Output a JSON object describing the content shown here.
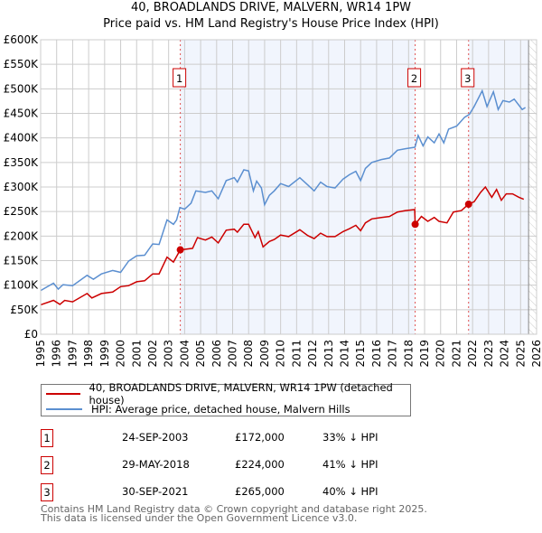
{
  "title": "40, BROADLANDS DRIVE, MALVERN, WR14 1PW",
  "subtitle": "Price paid vs. HM Land Registry's House Price Index (HPI)",
  "chart_data": {
    "type": "line",
    "title": "40, BROADLANDS DRIVE, MALVERN, WR14 1PW — Price paid vs. HM Land Registry's House Price Index (HPI)",
    "xlim": [
      1995,
      2026
    ],
    "ylim": [
      0,
      600000
    ],
    "x_ticks": [
      "1995",
      "1996",
      "1997",
      "1998",
      "1999",
      "2000",
      "2001",
      "2002",
      "2003",
      "2004",
      "2005",
      "2006",
      "2007",
      "2008",
      "2009",
      "2010",
      "2011",
      "2012",
      "2013",
      "2014",
      "2015",
      "2016",
      "2017",
      "2018",
      "2019",
      "2020",
      "2021",
      "2022",
      "2023",
      "2024",
      "2025",
      "2026"
    ],
    "y_ticks": [
      {
        "v": 0,
        "l": "£0"
      },
      {
        "v": 50000,
        "l": "£50K"
      },
      {
        "v": 100000,
        "l": "£100K"
      },
      {
        "v": 150000,
        "l": "£150K"
      },
      {
        "v": 200000,
        "l": "£200K"
      },
      {
        "v": 250000,
        "l": "£250K"
      },
      {
        "v": 300000,
        "l": "£300K"
      },
      {
        "v": 350000,
        "l": "£350K"
      },
      {
        "v": 400000,
        "l": "£400K"
      },
      {
        "v": 450000,
        "l": "£450K"
      },
      {
        "v": 500000,
        "l": "£500K"
      },
      {
        "v": 550000,
        "l": "£550K"
      },
      {
        "v": 600000,
        "l": "£600K"
      }
    ],
    "grid": true,
    "series": [
      {
        "name": "40, BROADLANDS DRIVE, MALVERN, WR14 1PW (detached house)",
        "color": "#cc0000",
        "x": [
          1995,
          1995.8,
          1996.2,
          1996.5,
          1997,
          1997.9,
          1998.2,
          1998.8,
          1999.5,
          2000,
          2000.5,
          2001,
          2001.5,
          2002,
          2002.4,
          2002.9,
          2003.3,
          2003.73,
          2004,
          2004.5,
          2004.8,
          2005.3,
          2005.7,
          2006.1,
          2006.6,
          2007.1,
          2007.3,
          2007.7,
          2008,
          2008.4,
          2008.6,
          2008.9,
          2009.3,
          2009.6,
          2010,
          2010.5,
          2011.2,
          2011.7,
          2012.1,
          2012.5,
          2012.9,
          2013.4,
          2013.9,
          2014.3,
          2014.7,
          2015,
          2015.3,
          2015.7,
          2016.3,
          2016.8,
          2017.3,
          2017.8,
          2018.38,
          2018.41,
          2018.8,
          2019.2,
          2019.6,
          2019.9,
          2020.4,
          2020.8,
          2021.3,
          2021.75,
          2022.1,
          2022.5,
          2022.8,
          2023.2,
          2023.5,
          2023.8,
          2024.1,
          2024.5,
          2024.9,
          2025.2
        ],
        "y": [
          60000,
          69000,
          61000,
          69000,
          66000,
          83000,
          74000,
          83000,
          86000,
          97000,
          99000,
          107000,
          109000,
          123000,
          123000,
          157000,
          147000,
          172000,
          173000,
          175000,
          197000,
          192000,
          198000,
          186000,
          212000,
          214000,
          208000,
          224000,
          224000,
          197000,
          209000,
          178000,
          189000,
          193000,
          202000,
          199000,
          213000,
          201000,
          195000,
          206000,
          199000,
          199000,
          209000,
          215000,
          222000,
          211000,
          227000,
          235000,
          238000,
          240000,
          249000,
          252000,
          254000,
          224000,
          240000,
          230000,
          238000,
          230000,
          227000,
          249000,
          252000,
          265000,
          270000,
          289000,
          300000,
          279000,
          295000,
          273000,
          286000,
          286000,
          279000,
          275000
        ]
      },
      {
        "name": "HPI: Average price, detached house, Malvern Hills",
        "color": "#5b8fd0",
        "x": [
          1995,
          1995.8,
          1996.1,
          1996.4,
          1997,
          1997.9,
          1998.3,
          1998.8,
          1999.5,
          2000,
          2000.5,
          2001,
          2001.5,
          2002,
          2002.4,
          2002.9,
          2003.3,
          2003.5,
          2003.7,
          2004,
          2004.4,
          2004.7,
          2005.3,
          2005.7,
          2006.1,
          2006.6,
          2007.1,
          2007.3,
          2007.7,
          2008,
          2008.3,
          2008.5,
          2008.8,
          2009,
          2009.3,
          2009.6,
          2010,
          2010.5,
          2011.2,
          2011.7,
          2012.1,
          2012.5,
          2012.9,
          2013.4,
          2013.9,
          2014.3,
          2014.7,
          2015,
          2015.3,
          2015.7,
          2016.3,
          2016.8,
          2017.3,
          2017.8,
          2018.4,
          2018.6,
          2018.9,
          2019.2,
          2019.6,
          2019.9,
          2020.2,
          2020.5,
          2021,
          2021.5,
          2021.8,
          2022.1,
          2022.6,
          2022.9,
          2023.3,
          2023.6,
          2023.9,
          2024.3,
          2024.6,
          2025.1,
          2025.3
        ],
        "y": [
          89000,
          104000,
          92000,
          101000,
          99000,
          120000,
          112000,
          123000,
          130000,
          126000,
          149000,
          160000,
          161000,
          184000,
          183000,
          233000,
          224000,
          233000,
          258000,
          255000,
          267000,
          292000,
          289000,
          292000,
          276000,
          313000,
          319000,
          310000,
          335000,
          333000,
          292000,
          312000,
          298000,
          264000,
          283000,
          292000,
          307000,
          301000,
          319000,
          304000,
          292000,
          310000,
          301000,
          298000,
          316000,
          325000,
          332000,
          313000,
          338000,
          350000,
          356000,
          359000,
          375000,
          378000,
          381000,
          405000,
          384000,
          402000,
          390000,
          408000,
          390000,
          418000,
          424000,
          442000,
          448000,
          464000,
          496000,
          464000,
          494000,
          458000,
          476000,
          473000,
          479000,
          458000,
          462000
        ]
      }
    ],
    "sales": [
      {
        "label": "1",
        "x": 2003.73,
        "y": 172000
      },
      {
        "label": "2",
        "x": 2018.41,
        "y": 224000
      },
      {
        "label": "3",
        "x": 2021.75,
        "y": 265000
      }
    ],
    "shaded_ranges": [
      [
        2003.73,
        2018.41
      ],
      [
        2021.75,
        2025.5
      ]
    ],
    "hatched_range": [
      2025.5,
      2026
    ],
    "legend_placement": "below"
  },
  "legend": [
    {
      "label": "40, BROADLANDS DRIVE, MALVERN, WR14 1PW (detached house)",
      "color": "#cc0000"
    },
    {
      "label": "HPI: Average price, detached house, Malvern Hills",
      "color": "#5b8fd0"
    }
  ],
  "transactions": [
    {
      "num": "1",
      "date": "24-SEP-2003",
      "price": "£172,000",
      "hpi": "33% ↓ HPI"
    },
    {
      "num": "2",
      "date": "29-MAY-2018",
      "price": "£224,000",
      "hpi": "41% ↓ HPI"
    },
    {
      "num": "3",
      "date": "30-SEP-2021",
      "price": "£265,000",
      "hpi": "40% ↓ HPI"
    }
  ],
  "footer": [
    "Contains HM Land Registry data © Crown copyright and database right 2025.",
    "This data is licensed under the Open Government Licence v3.0."
  ]
}
